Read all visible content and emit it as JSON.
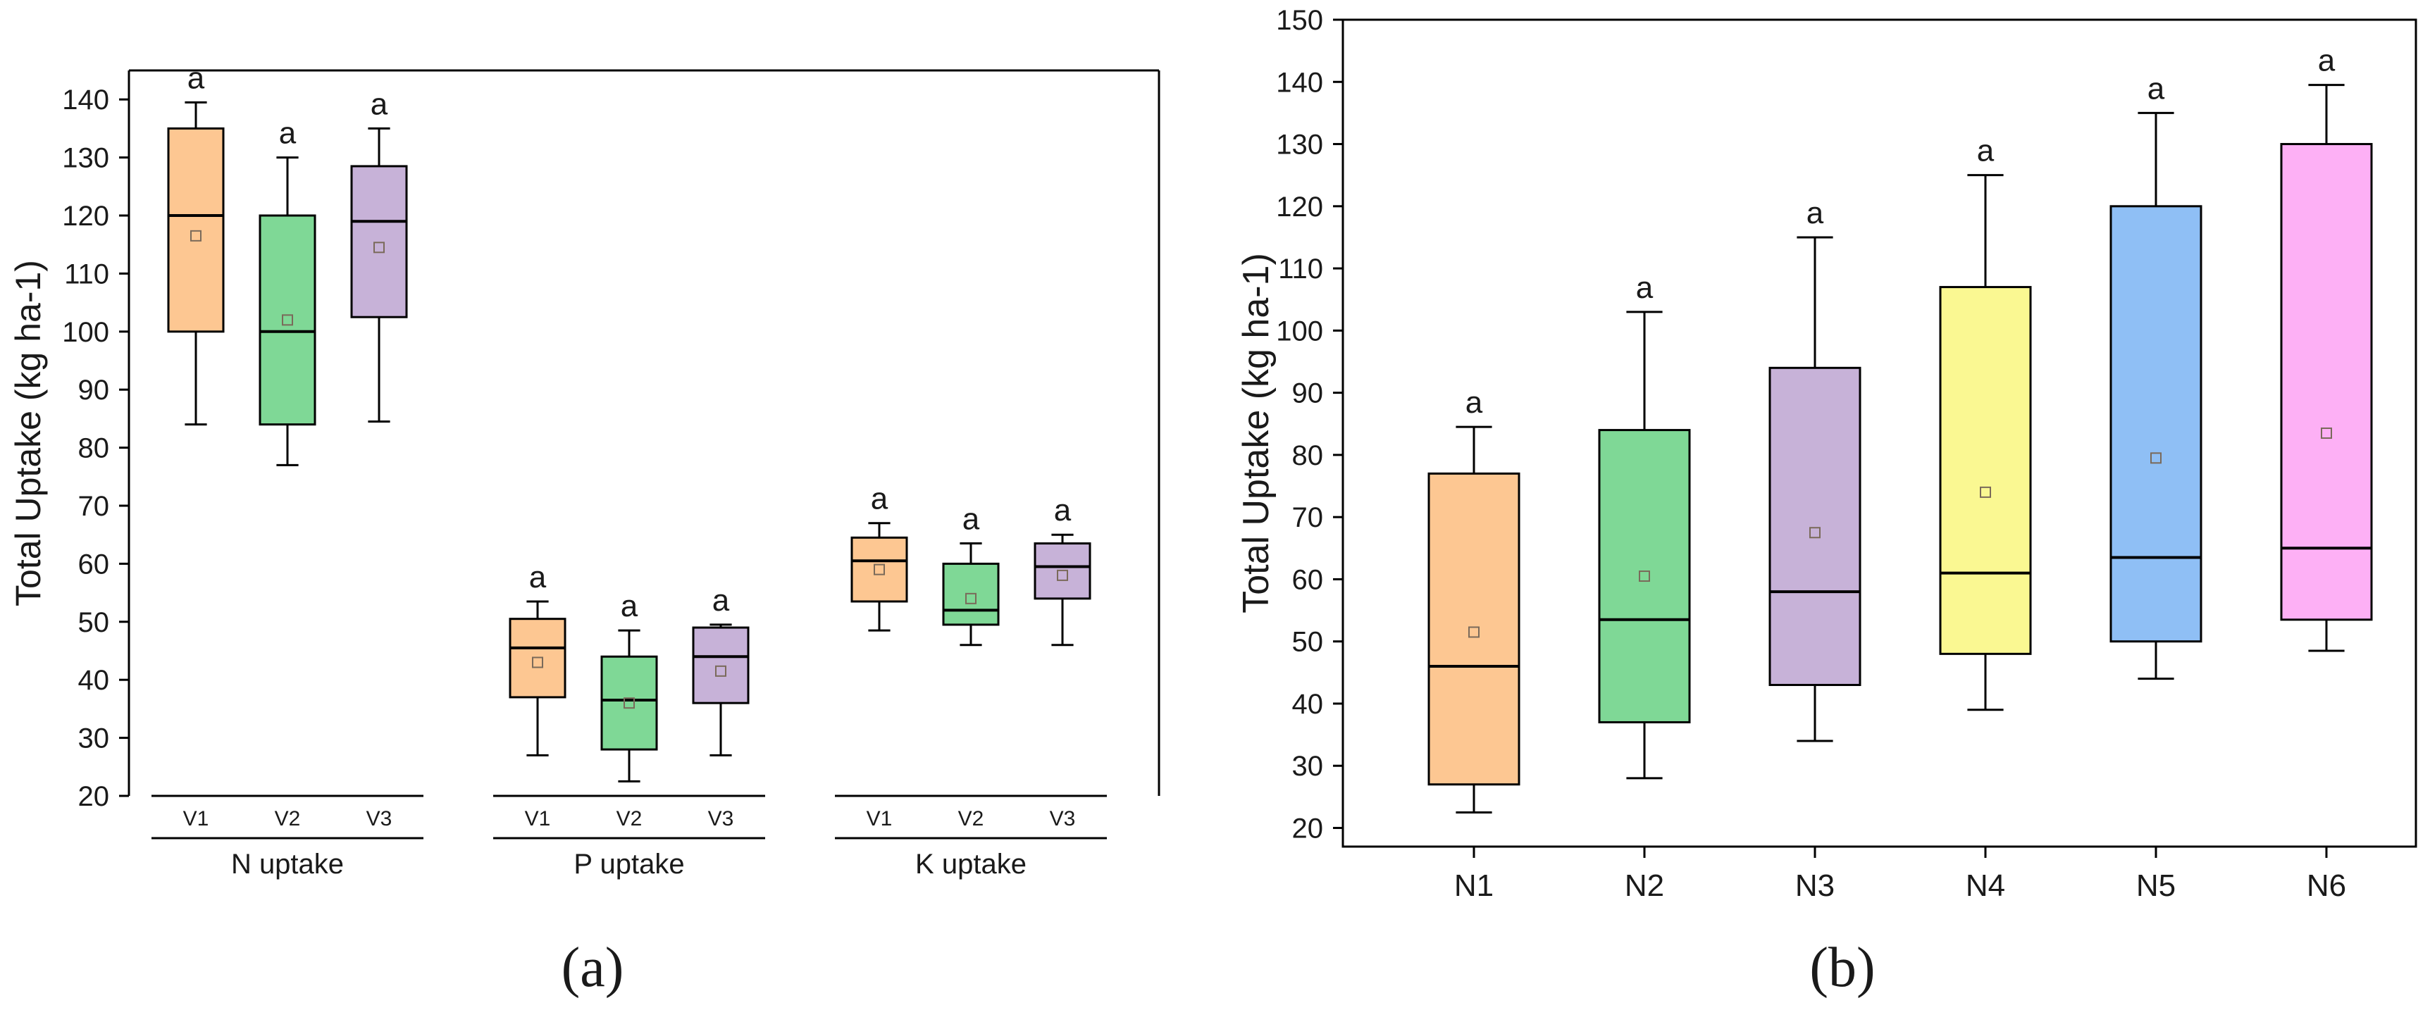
{
  "chart_data": [
    {
      "type": "box",
      "panel_label": "(a)",
      "ylabel": "Total Uptake (kg ha-1)",
      "ylim": [
        20,
        145
      ],
      "yticks": [
        20,
        30,
        40,
        50,
        60,
        70,
        80,
        90,
        100,
        110,
        120,
        130,
        140
      ],
      "grid": false,
      "groups": [
        {
          "name": "N uptake",
          "boxes": [
            {
              "label": "V1",
              "color": "#FDC792",
              "whisker_low": 84,
              "q1": 100,
              "median": 120,
              "q3": 135,
              "whisker_high": 139.5,
              "mean": 116.5,
              "letter": "a"
            },
            {
              "label": "V2",
              "color": "#7FD896",
              "whisker_low": 77,
              "q1": 84,
              "median": 100,
              "q3": 120,
              "whisker_high": 130,
              "mean": 102,
              "letter": "a"
            },
            {
              "label": "V3",
              "color": "#C7B2D8",
              "whisker_low": 84.5,
              "q1": 102.5,
              "median": 119,
              "q3": 128.5,
              "whisker_high": 135,
              "mean": 114.5,
              "letter": "a"
            }
          ]
        },
        {
          "name": "P uptake",
          "boxes": [
            {
              "label": "V1",
              "color": "#FDC792",
              "whisker_low": 27,
              "q1": 37,
              "median": 45.5,
              "q3": 50.5,
              "whisker_high": 53.5,
              "mean": 43,
              "letter": "a"
            },
            {
              "label": "V2",
              "color": "#7FD896",
              "whisker_low": 22.5,
              "q1": 28,
              "median": 36.5,
              "q3": 44,
              "whisker_high": 48.5,
              "mean": 36,
              "letter": "a"
            },
            {
              "label": "V3",
              "color": "#C7B2D8",
              "whisker_low": 27,
              "q1": 36,
              "median": 44,
              "q3": 49,
              "whisker_high": 49.5,
              "mean": 41.5,
              "letter": "a"
            }
          ]
        },
        {
          "name": "K uptake",
          "boxes": [
            {
              "label": "V1",
              "color": "#FDC792",
              "whisker_low": 48.5,
              "q1": 53.5,
              "median": 60.5,
              "q3": 64.5,
              "whisker_high": 67,
              "mean": 59,
              "letter": "a"
            },
            {
              "label": "V2",
              "color": "#7FD896",
              "whisker_low": 46,
              "q1": 49.5,
              "median": 52,
              "q3": 60,
              "whisker_high": 63.5,
              "mean": 54,
              "letter": "a"
            },
            {
              "label": "V3",
              "color": "#C7B2D8",
              "whisker_low": 46,
              "q1": 54,
              "median": 59.5,
              "q3": 63.5,
              "whisker_high": 65,
              "mean": 58,
              "letter": "a"
            }
          ]
        }
      ]
    },
    {
      "type": "box",
      "panel_label": "(b)",
      "ylabel": "Total Uptake (kg ha-1)",
      "ylim": [
        17,
        150
      ],
      "yticks": [
        20,
        30,
        40,
        50,
        60,
        70,
        80,
        90,
        100,
        110,
        120,
        130,
        140,
        150
      ],
      "grid": false,
      "boxes": [
        {
          "label": "N1",
          "color": "#FDC792",
          "whisker_low": 22.5,
          "q1": 27,
          "median": 46,
          "q3": 77,
          "whisker_high": 84.5,
          "mean": 51.5,
          "letter": "a"
        },
        {
          "label": "N2",
          "color": "#7FD896",
          "whisker_low": 28,
          "q1": 37,
          "median": 53.5,
          "q3": 84,
          "whisker_high": 103,
          "mean": 60.5,
          "letter": "a"
        },
        {
          "label": "N3",
          "color": "#C7B2D8",
          "whisker_low": 34,
          "q1": 43,
          "median": 58,
          "q3": 94,
          "whisker_high": 115,
          "mean": 67.5,
          "letter": "a"
        },
        {
          "label": "N4",
          "color": "#FAF892",
          "whisker_low": 39,
          "q1": 48,
          "median": 61,
          "q3": 107,
          "whisker_high": 125,
          "mean": 74,
          "letter": "a"
        },
        {
          "label": "N5",
          "color": "#8FBFF5",
          "whisker_low": 44,
          "q1": 50,
          "median": 63.5,
          "q3": 120,
          "whisker_high": 135,
          "mean": 79.5,
          "letter": "a"
        },
        {
          "label": "N6",
          "color": "#FDB0F5",
          "whisker_low": 48.5,
          "q1": 53.5,
          "median": 65,
          "q3": 130,
          "whisker_high": 139.5,
          "mean": 83.5,
          "letter": "a"
        }
      ]
    }
  ]
}
